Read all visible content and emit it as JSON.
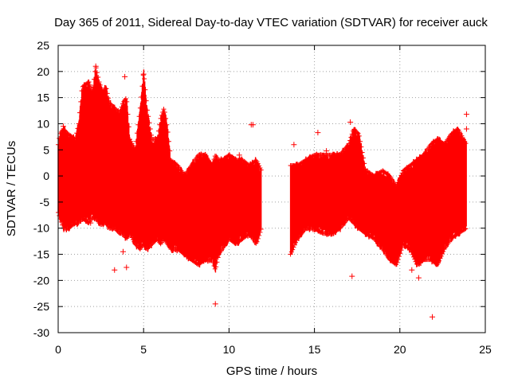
{
  "chart_data": {
    "type": "scatter",
    "title": "Day 365 of 2011, Sidereal Day-to-day VTEC variation (SDTVAR) for receiver auck",
    "xlabel": "GPS time / hours",
    "ylabel": "SDTVAR / TECUs",
    "xlim": [
      0,
      25
    ],
    "ylim": [
      -30,
      25
    ],
    "xticks": [
      0,
      5,
      10,
      15,
      20,
      25
    ],
    "yticks": [
      -30,
      -25,
      -20,
      -15,
      -10,
      -5,
      0,
      5,
      10,
      15,
      20,
      25
    ],
    "xtick_labels": [
      "0",
      "5",
      "10",
      "15",
      "20",
      "25"
    ],
    "ytick_labels": [
      "-30",
      "-25",
      "-20",
      "-15",
      "-10",
      "-5",
      "0",
      "5",
      "10",
      "15",
      "20",
      "25"
    ],
    "grid": true,
    "marker": "+",
    "color": "#ff0000",
    "series": [
      {
        "name": "SDTVAR",
        "envelope": {
          "x": [
            0.0,
            0.1,
            0.3,
            0.6,
            1.0,
            1.2,
            1.4,
            1.8,
            2.0,
            2.2,
            2.4,
            2.6,
            2.8,
            3.0,
            3.3,
            3.6,
            3.8,
            4.0,
            4.2,
            4.5,
            4.8,
            5.0,
            5.2,
            5.5,
            5.8,
            6.0,
            6.2,
            6.4,
            6.6,
            7.0,
            7.4,
            7.8,
            8.2,
            8.6,
            9.0,
            9.2,
            9.4,
            9.6,
            10.0,
            10.4,
            10.8,
            11.2,
            11.6,
            11.9
          ],
          "upper": [
            6,
            8,
            9,
            8,
            7,
            10,
            17,
            18,
            16,
            21,
            18,
            16,
            17,
            14,
            13,
            12,
            14,
            15,
            7,
            5,
            13,
            20,
            13,
            7,
            7,
            11,
            13,
            9,
            3,
            2,
            0,
            2,
            4,
            4,
            2,
            4,
            3,
            3,
            4,
            3,
            3,
            2,
            3,
            1
          ],
          "lower": [
            -7,
            -8,
            -10,
            -10,
            -9,
            -9,
            -8,
            -9,
            -8,
            -8,
            -9,
            -9,
            -9,
            -10,
            -10,
            -11,
            -11,
            -12,
            -11,
            -13,
            -14,
            -13,
            -14,
            -13,
            -12,
            -13,
            -12,
            -13,
            -14,
            -14,
            -15,
            -16,
            -17,
            -16,
            -16,
            -18,
            -15,
            -14,
            -12,
            -13,
            -12,
            -11,
            -13,
            -10
          ]
        },
        "envelope2": {
          "x": [
            13.6,
            14.0,
            14.5,
            15.0,
            15.5,
            16.0,
            16.5,
            17.0,
            17.3,
            17.6,
            18.0,
            18.5,
            19.0,
            19.4,
            19.8,
            20.2,
            20.6,
            21.0,
            21.4,
            21.8,
            22.2,
            22.6,
            23.0,
            23.4,
            23.9
          ],
          "upper": [
            2,
            2,
            3,
            4,
            4,
            4,
            4,
            6,
            9,
            8,
            1,
            0,
            1,
            0,
            -2,
            1,
            2,
            3,
            4,
            6,
            7,
            6,
            8,
            9,
            6
          ],
          "lower": [
            -15,
            -12,
            -10,
            -10,
            -11,
            -11,
            -10,
            -8,
            -9,
            -10,
            -11,
            -12,
            -14,
            -16,
            -17,
            -13,
            -14,
            -17,
            -16,
            -16,
            -17,
            -14,
            -12,
            -11,
            -10
          ]
        },
        "outliers": [
          {
            "x": 0.3,
            "y": 9.5
          },
          {
            "x": 2.2,
            "y": 21.0
          },
          {
            "x": 3.3,
            "y": -18.0
          },
          {
            "x": 3.4,
            "y": -8.0
          },
          {
            "x": 3.8,
            "y": -14.5
          },
          {
            "x": 3.9,
            "y": 19.0
          },
          {
            "x": 4.0,
            "y": -17.5
          },
          {
            "x": 4.9,
            "y": 9.5
          },
          {
            "x": 5.0,
            "y": 19.5
          },
          {
            "x": 9.2,
            "y": -24.5
          },
          {
            "x": 10.6,
            "y": 4.0
          },
          {
            "x": 11.3,
            "y": 9.8
          },
          {
            "x": 11.4,
            "y": 9.8
          },
          {
            "x": 15.2,
            "y": 8.3
          },
          {
            "x": 15.7,
            "y": 4.8
          },
          {
            "x": 17.1,
            "y": 10.3
          },
          {
            "x": 17.2,
            "y": -19.2
          },
          {
            "x": 21.1,
            "y": -19.5
          },
          {
            "x": 21.9,
            "y": -27.0
          },
          {
            "x": 23.9,
            "y": 11.8
          },
          {
            "x": 23.9,
            "y": 9.0
          },
          {
            "x": 1.9,
            "y": -9.0
          },
          {
            "x": 13.8,
            "y": 6.0
          },
          {
            "x": 20.7,
            "y": -18.0
          }
        ]
      }
    ]
  }
}
